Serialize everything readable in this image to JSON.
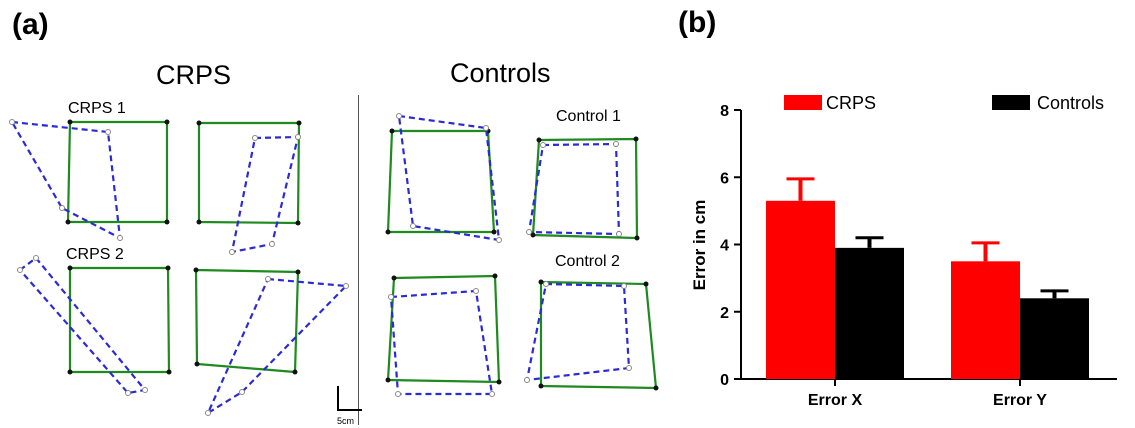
{
  "panel_a": {
    "label": "(a)",
    "crps_title": "CRPS",
    "controls_title": "Controls",
    "crps1_label": "CRPS 1",
    "crps2_label": "CRPS 2",
    "control1_label": "Control 1",
    "control2_label": "Control 2",
    "scale_label": "5cm",
    "colors": {
      "target": "#1f8a1f",
      "drawn": "#2a2ad6"
    }
  },
  "panel_b": {
    "label": "(b)"
  },
  "chart_data": {
    "type": "bar",
    "categories": [
      "Error X",
      "Error Y"
    ],
    "series": [
      {
        "name": "CRPS",
        "color": "#ff0000",
        "values": [
          5.3,
          3.5
        ],
        "errors": [
          0.65,
          0.55
        ]
      },
      {
        "name": "Controls",
        "color": "#000000",
        "values": [
          3.9,
          2.4
        ],
        "errors": [
          0.3,
          0.22
        ]
      }
    ],
    "ylabel": "Error in cm",
    "ylim": [
      0,
      8
    ],
    "yticks": [
      0,
      2,
      4,
      6,
      8
    ],
    "legend_position": "top",
    "grid": false
  }
}
